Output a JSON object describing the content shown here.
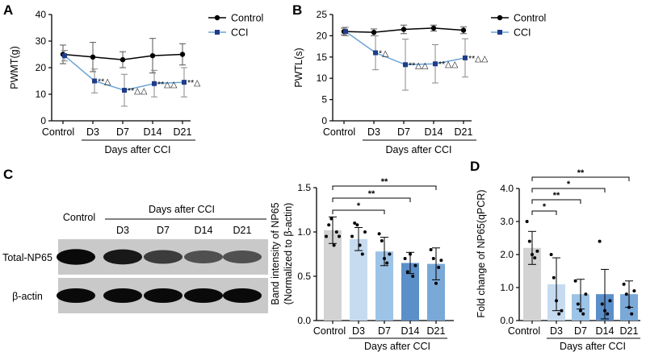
{
  "chart_data": [
    {
      "panel": "A",
      "type": "line",
      "ylabel": "PWMT(g)",
      "xlabel": "Days after CCI",
      "categories": [
        "Control",
        "D3",
        "D7",
        "D14",
        "D21"
      ],
      "ylim": [
        0,
        40
      ],
      "yticks": [
        0,
        10,
        20,
        30,
        40
      ],
      "series": [
        {
          "name": "Control",
          "values": [
            25.0,
            24.0,
            23.0,
            24.5,
            25.0
          ],
          "errors": [
            3.5,
            5.5,
            3.0,
            6.5,
            4.0
          ],
          "color": "#000000",
          "marker": "circle"
        },
        {
          "name": "CCI",
          "values": [
            24.5,
            15.0,
            11.5,
            14.0,
            14.5
          ],
          "errors": [
            2.0,
            4.5,
            6.0,
            5.0,
            5.5
          ],
          "color": "#1f3c88",
          "marker": "square",
          "line_color": "#6ba3d6"
        }
      ],
      "annotations": [
        "",
        "**△",
        "**△△",
        "**△△",
        "**△"
      ]
    },
    {
      "panel": "B",
      "type": "line",
      "ylabel": "PWTL(s)",
      "xlabel": "Days after CCI",
      "categories": [
        "Control",
        "D3",
        "D7",
        "D14",
        "D21"
      ],
      "ylim": [
        0,
        25
      ],
      "yticks": [
        0,
        5,
        10,
        15,
        20,
        25
      ],
      "series": [
        {
          "name": "Control",
          "values": [
            21.0,
            20.8,
            21.5,
            21.8,
            21.3
          ],
          "errors": [
            0.8,
            0.8,
            1.0,
            0.7,
            0.8
          ],
          "color": "#000000",
          "marker": "circle"
        },
        {
          "name": "CCI",
          "values": [
            21.0,
            16.0,
            13.2,
            13.4,
            14.8
          ],
          "errors": [
            1.0,
            4.0,
            6.0,
            4.5,
            4.5
          ],
          "color": "#1f3c88",
          "marker": "square",
          "line_color": "#6ba3d6"
        }
      ],
      "annotations": [
        "",
        "*△",
        "**△△",
        "**△△",
        "**△△"
      ]
    },
    {
      "panel": "C",
      "type": "bar",
      "ylabel_line1": "Band intensity of NP65",
      "ylabel_line2": "(Normalized to β-actin)",
      "xlabel": "Days after CCI",
      "categories": [
        "Control",
        "D3",
        "D7",
        "D14",
        "D21"
      ],
      "ylim": [
        0,
        1.5
      ],
      "yticks": [
        "0.0",
        "0.5",
        "1.0",
        "1.5"
      ],
      "values": [
        1.02,
        0.92,
        0.78,
        0.65,
        0.64
      ],
      "errors": [
        0.15,
        0.13,
        0.16,
        0.12,
        0.18
      ],
      "colors": [
        "#d3d3d3",
        "#c6dbf0",
        "#9dc3e6",
        "#5b8fc9",
        "#7aa9d8"
      ],
      "points": [
        [
          0.95,
          1.08,
          1.15,
          0.85,
          1.0,
          0.95
        ],
        [
          0.95,
          1.1,
          1.08,
          0.85,
          0.75,
          1.0
        ],
        [
          0.98,
          0.9,
          0.7,
          0.65,
          0.75
        ],
        [
          0.7,
          0.55,
          0.75,
          0.5,
          0.62
        ],
        [
          0.8,
          0.7,
          0.42,
          0.6,
          0.68
        ]
      ],
      "significance": [
        {
          "from": 0,
          "to": 2,
          "label": "*"
        },
        {
          "from": 0,
          "to": 3,
          "label": "**"
        },
        {
          "from": 0,
          "to": 4,
          "label": "**"
        }
      ]
    },
    {
      "panel": "D",
      "type": "bar",
      "ylabel": "Fold change of NP65(qPCR)",
      "xlabel": "Days  after  CCI",
      "categories": [
        "Control",
        "D3",
        "D7",
        "D14",
        "D21"
      ],
      "ylim": [
        0,
        4.0
      ],
      "yticks": [
        "0.0",
        "1.0",
        "2.0",
        "3.0",
        "4.0"
      ],
      "values": [
        2.2,
        1.1,
        0.8,
        0.8,
        0.8
      ],
      "errors": [
        0.5,
        0.8,
        0.45,
        0.75,
        0.4
      ],
      "colors": [
        "#d3d3d3",
        "#c6dbf0",
        "#9dc3e6",
        "#5b8fc9",
        "#7aa9d8"
      ],
      "points": [
        [
          3.0,
          2.4,
          2.0,
          1.9,
          2.1
        ],
        [
          2.0,
          1.3,
          0.6,
          0.2,
          0.3
        ],
        [
          1.2,
          0.5,
          0.3,
          0.2,
          0.8
        ],
        [
          2.4,
          0.5,
          0.3,
          0.2,
          0.6
        ],
        [
          1.1,
          0.8,
          0.4,
          0.2,
          0.9
        ]
      ],
      "significance": [
        {
          "from": 0,
          "to": 1,
          "label": "*"
        },
        {
          "from": 0,
          "to": 2,
          "label": "**"
        },
        {
          "from": 0,
          "to": 3,
          "label": "*"
        },
        {
          "from": 0,
          "to": 4,
          "label": "**"
        }
      ]
    }
  ],
  "blot": {
    "header": "Days after CCI",
    "lanes": [
      "Control",
      "D3",
      "D7",
      "D14",
      "D21"
    ],
    "rows": [
      {
        "label": "Total-NP65",
        "intensity": [
          0.95,
          0.88,
          0.7,
          0.6,
          0.6
        ]
      },
      {
        "label": "β-actin",
        "intensity": [
          0.95,
          0.95,
          0.95,
          0.95,
          0.95
        ]
      }
    ]
  }
}
